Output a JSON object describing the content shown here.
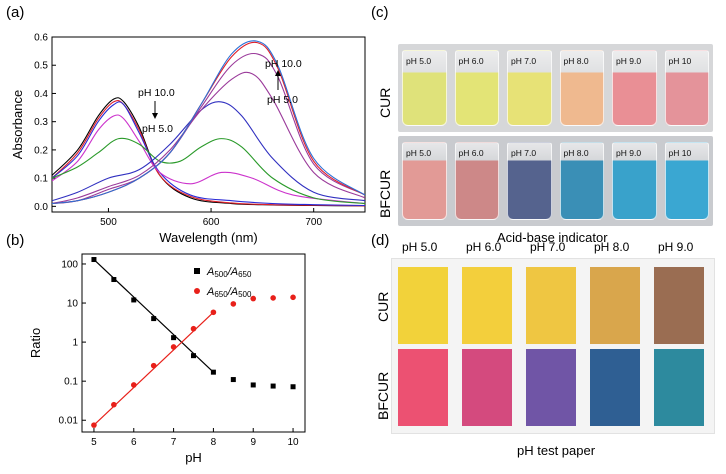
{
  "panels": {
    "a": "(a)",
    "b": "(b)",
    "c": "(c)",
    "d": "(d)"
  },
  "chart_data": [
    {
      "type": "line",
      "xlabel": "Wavelength (nm)",
      "ylabel": "Absorbance",
      "xlim": [
        445,
        750
      ],
      "ylim": [
        -0.02,
        0.6
      ],
      "xticks": [
        500,
        600,
        700
      ],
      "yticks": [
        0.0,
        0.1,
        0.2,
        0.3,
        0.4,
        0.5,
        0.6
      ],
      "annotations": {
        "left_top": "pH 10.0",
        "left_bottom": "pH 5.0",
        "right_top": "pH 10.0",
        "right_bottom": "pH 5.0"
      },
      "grid": false,
      "series": [
        {
          "color": "#000000",
          "x": [
            445,
            470,
            490,
            505,
            515,
            530,
            550,
            580,
            620,
            660,
            700,
            750
          ],
          "values": [
            0.11,
            0.2,
            0.32,
            0.38,
            0.37,
            0.28,
            0.11,
            0.03,
            0.01,
            0.005,
            0.003,
            0.002
          ]
        },
        {
          "color": "#e0202a",
          "x": [
            445,
            470,
            490,
            505,
            515,
            530,
            550,
            580,
            620,
            660,
            700,
            750
          ],
          "values": [
            0.1,
            0.19,
            0.31,
            0.37,
            0.36,
            0.27,
            0.11,
            0.035,
            0.012,
            0.006,
            0.004,
            0.002
          ]
        },
        {
          "color": "#2b2bd6",
          "x": [
            445,
            470,
            490,
            505,
            515,
            530,
            550,
            580,
            620,
            660,
            700,
            750
          ],
          "values": [
            0.1,
            0.18,
            0.3,
            0.36,
            0.36,
            0.26,
            0.12,
            0.04,
            0.02,
            0.01,
            0.006,
            0.003
          ]
        },
        {
          "color": "#cc33cc",
          "x": [
            445,
            470,
            490,
            505,
            515,
            530,
            550,
            580,
            610,
            640,
            680,
            750
          ],
          "values": [
            0.09,
            0.16,
            0.27,
            0.32,
            0.31,
            0.23,
            0.12,
            0.08,
            0.12,
            0.1,
            0.04,
            0.01
          ]
        },
        {
          "color": "#2a9a2a",
          "x": [
            445,
            470,
            490,
            510,
            530,
            550,
            570,
            590,
            610,
            630,
            660,
            700,
            750
          ],
          "values": [
            0.1,
            0.14,
            0.19,
            0.24,
            0.22,
            0.16,
            0.16,
            0.21,
            0.24,
            0.21,
            0.1,
            0.03,
            0.01
          ]
        },
        {
          "color": "#3030c0",
          "x": [
            445,
            470,
            500,
            530,
            560,
            590,
            610,
            630,
            660,
            700,
            750
          ],
          "values": [
            0.02,
            0.05,
            0.1,
            0.13,
            0.22,
            0.34,
            0.37,
            0.32,
            0.17,
            0.05,
            0.02
          ]
        },
        {
          "color": "#9a3a9a",
          "x": [
            445,
            470,
            500,
            530,
            560,
            590,
            620,
            640,
            660,
            700,
            750
          ],
          "values": [
            0.01,
            0.03,
            0.07,
            0.11,
            0.2,
            0.34,
            0.45,
            0.47,
            0.38,
            0.12,
            0.03
          ]
        },
        {
          "color": "#9a3a9a",
          "x": [
            445,
            470,
            500,
            530,
            560,
            590,
            620,
            645,
            665,
            700,
            750
          ],
          "values": [
            0.01,
            0.02,
            0.06,
            0.1,
            0.19,
            0.35,
            0.5,
            0.54,
            0.46,
            0.15,
            0.04
          ]
        },
        {
          "color": "#e0202a",
          "x": [
            445,
            470,
            500,
            530,
            560,
            590,
            620,
            645,
            665,
            700,
            750
          ],
          "values": [
            0.01,
            0.02,
            0.05,
            0.1,
            0.19,
            0.36,
            0.53,
            0.58,
            0.49,
            0.16,
            0.04
          ]
        },
        {
          "color": "#2b6fd6",
          "x": [
            445,
            470,
            500,
            530,
            560,
            590,
            620,
            645,
            665,
            700,
            750
          ],
          "values": [
            0.01,
            0.02,
            0.05,
            0.1,
            0.19,
            0.36,
            0.54,
            0.585,
            0.5,
            0.17,
            0.04
          ]
        }
      ]
    },
    {
      "type": "scatter",
      "xlabel": "pH",
      "ylabel": "Ratio",
      "xlim": [
        4.7,
        10.3
      ],
      "ylim": [
        0.005,
        180
      ],
      "yscale": "log",
      "xticks": [
        5,
        6,
        7,
        8,
        9,
        10
      ],
      "yticks": [
        0.01,
        0.1,
        1,
        10,
        100
      ],
      "ytick_labels": [
        "0.01",
        "0.1",
        "1",
        "10",
        "100"
      ],
      "legend": "top-right",
      "series": [
        {
          "name": "A500/A650",
          "name_main": "A",
          "name_sub1": "500",
          "name_sep": "/A",
          "name_sub2": "650",
          "color": "#000000",
          "marker": "square",
          "x": [
            5,
            5.5,
            6,
            6.5,
            7,
            7.5,
            8,
            8.5,
            9,
            9.5,
            10
          ],
          "values": [
            130,
            40,
            12,
            4,
            1.3,
            0.45,
            0.17,
            0.11,
            0.08,
            0.075,
            0.072
          ],
          "fit_x": [
            5,
            8
          ]
        },
        {
          "name": "A650/A500",
          "name_main": "A",
          "name_sub1": "650",
          "name_sep": "/A",
          "name_sub2": "500",
          "color": "#e8201a",
          "marker": "circle",
          "x": [
            5,
            5.5,
            6,
            6.5,
            7,
            7.5,
            8,
            8.5,
            9,
            9.5,
            10
          ],
          "values": [
            0.0075,
            0.025,
            0.08,
            0.25,
            0.75,
            2.2,
            5.8,
            9.5,
            13,
            13.5,
            14
          ],
          "fit_x": [
            5,
            8
          ]
        }
      ]
    }
  ],
  "photo_c": {
    "row_labels": [
      "CUR",
      "BFCUR"
    ],
    "cur_vials": [
      {
        "label": "pH 5.0",
        "color": "#dfe27a"
      },
      {
        "label": "pH 6.0",
        "color": "#e3e476"
      },
      {
        "label": "pH 7.0",
        "color": "#e7e276"
      },
      {
        "label": "pH 8.0",
        "color": "#efb98f"
      },
      {
        "label": "pH 9.0",
        "color": "#e98f95"
      },
      {
        "label": "pH 10",
        "color": "#e4939a"
      }
    ],
    "bfcur_vials": [
      {
        "label": "pH 5.0",
        "color": "#e29a96"
      },
      {
        "label": "pH 6.0",
        "color": "#cd8888"
      },
      {
        "label": "pH 7.0",
        "color": "#55638e"
      },
      {
        "label": "pH 8.0",
        "color": "#3a8fb6"
      },
      {
        "label": "pH 9.0",
        "color": "#39a2cb"
      },
      {
        "label": "pH 10",
        "color": "#3aa7d2"
      }
    ],
    "caption": "Acid-base indicator"
  },
  "paper_d": {
    "headers": [
      "pH 5.0",
      "pH 6.0",
      "pH 7.0",
      "pH 8.0",
      "pH 9.0"
    ],
    "row_labels": [
      "CUR",
      "BFCUR"
    ],
    "cur_colors": [
      "#f2d23a",
      "#f3cf3c",
      "#efc642",
      "#d9a64c",
      "#9a6d52"
    ],
    "bfcur_colors": [
      "#ec5172",
      "#d44a7e",
      "#7055a6",
      "#2f5f93",
      "#2d8a9e"
    ],
    "caption": "pH test paper"
  }
}
